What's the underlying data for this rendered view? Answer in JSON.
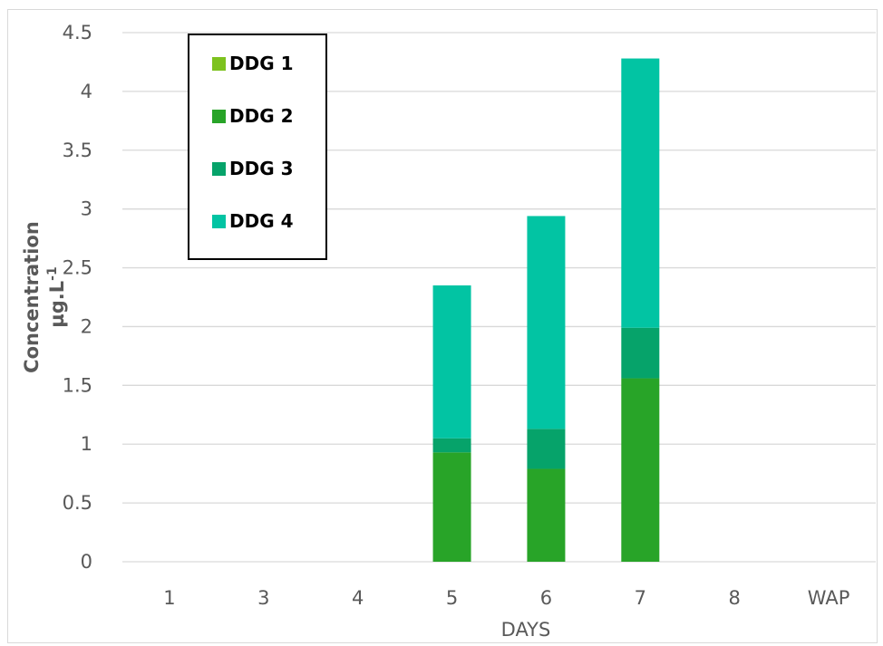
{
  "chart_data": {
    "type": "bar",
    "stacked": true,
    "categories": [
      "1",
      "3",
      "4",
      "5",
      "6",
      "7",
      "8",
      "WAP"
    ],
    "xlabel": "DAYS",
    "ylabel": "Concentration",
    "ylabel_unit": "µg.L",
    "ylabel_unit_sup": "-1",
    "ylim": [
      0,
      4.5
    ],
    "yticks": [
      "0",
      "0.5",
      "1",
      "1.5",
      "2",
      "2.5",
      "3",
      "3.5",
      "4",
      "4.5"
    ],
    "grid": true,
    "legend_position": "top-left",
    "series": [
      {
        "name": "DDG 1",
        "color": "#7dc21e",
        "values": [
          0,
          0,
          0,
          0,
          0,
          0,
          0,
          0
        ]
      },
      {
        "name": "DDG 2",
        "color": "#28a428",
        "values": [
          0,
          0,
          0,
          0.93,
          0.79,
          1.56,
          0,
          0
        ]
      },
      {
        "name": "DDG 3",
        "color": "#06a36a",
        "values": [
          0,
          0,
          0,
          0.12,
          0.34,
          0.43,
          0,
          0
        ]
      },
      {
        "name": "DDG 4",
        "color": "#02c4a3",
        "values": [
          0,
          0,
          0,
          1.3,
          1.81,
          2.29,
          0,
          0
        ]
      }
    ]
  }
}
